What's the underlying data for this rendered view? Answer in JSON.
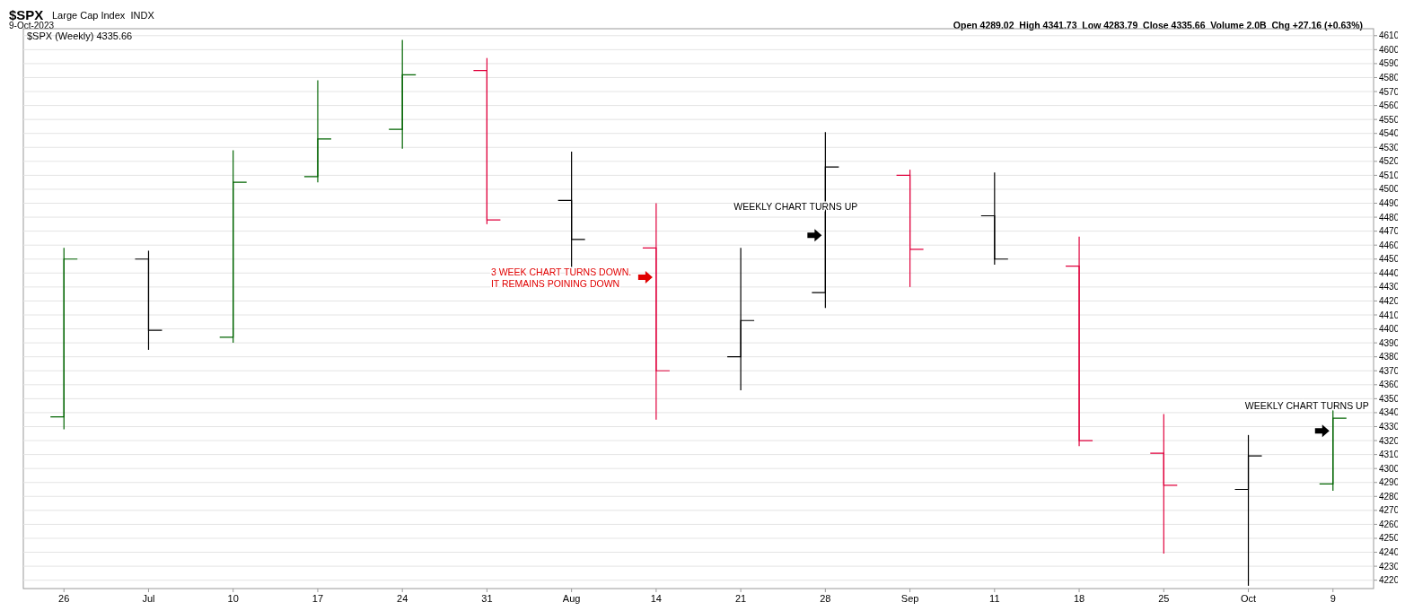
{
  "chart_data": {
    "type": "candlestick",
    "title": "$SPX",
    "subtitle": "Large Cap Index  INDX",
    "legend_title": "$SPX (Weekly) 4335.66",
    "categories": [
      "26",
      "Jul",
      "10",
      "17",
      "24",
      "31",
      "Aug",
      "14",
      "21",
      "28",
      "Sep",
      "11",
      "18",
      "25",
      "Oct",
      "9"
    ],
    "ohlc": [
      [
        4337,
        4458,
        4328,
        4450
      ],
      [
        4450,
        4456,
        4385,
        4399
      ],
      [
        4394,
        4528,
        4390,
        4505
      ],
      [
        4509,
        4578,
        4505,
        4536
      ],
      [
        4543,
        4607,
        4529,
        4582
      ],
      [
        4585,
        4594,
        4475,
        4478
      ],
      [
        4492,
        4527,
        4444,
        4464
      ],
      [
        4458,
        4490,
        4335,
        4370
      ],
      [
        4380,
        4458,
        4356,
        4406
      ],
      [
        4426,
        4541,
        4415,
        4516
      ],
      [
        4510,
        4514,
        4430,
        4457
      ],
      [
        4481,
        4512,
        4446,
        4450
      ],
      [
        4445,
        4466,
        4316,
        4320
      ],
      [
        4311,
        4339,
        4239,
        4288
      ],
      [
        4285,
        4324,
        4216,
        4309
      ],
      [
        4289,
        4342,
        4284,
        4336
      ]
    ],
    "colors": [
      "#006400",
      "#000000",
      "#006400",
      "#006400",
      "#006400",
      "#e0003c",
      "#000000",
      "#e0003c",
      "#000000",
      "#000000",
      "#e0003c",
      "#000000",
      "#e0003c",
      "#e0003c",
      "#000000",
      "#006400"
    ],
    "ylim": [
      4214,
      4615
    ],
    "yticks": [
      4220,
      4230,
      4240,
      4250,
      4260,
      4270,
      4280,
      4290,
      4300,
      4310,
      4320,
      4330,
      4340,
      4350,
      4360,
      4370,
      4380,
      4390,
      4400,
      4410,
      4420,
      4430,
      4440,
      4450,
      4460,
      4470,
      4480,
      4490,
      4500,
      4510,
      4520,
      4530,
      4540,
      4550,
      4560,
      4570,
      4580,
      4590,
      4600,
      4610
    ],
    "grid": "y",
    "annotations": [
      "9-Oct-2023",
      "Open 4289.02  High 4341.73  Low 4283.79  Close 4335.66  Volume 2.0B  Chg +27.16 (+0.63%)",
      {
        "text": "3 WEEK CHART TURNS DOWN.\nIT REMAINS POINING DOWN",
        "x": "14",
        "y": 4437
      },
      {
        "text": "WEEKLY CHART TURNS UP",
        "x": "28",
        "y": 4467
      },
      {
        "text": "WEEKLY CHART TURNS UP",
        "x": "9",
        "y": 4327
      }
    ]
  }
}
